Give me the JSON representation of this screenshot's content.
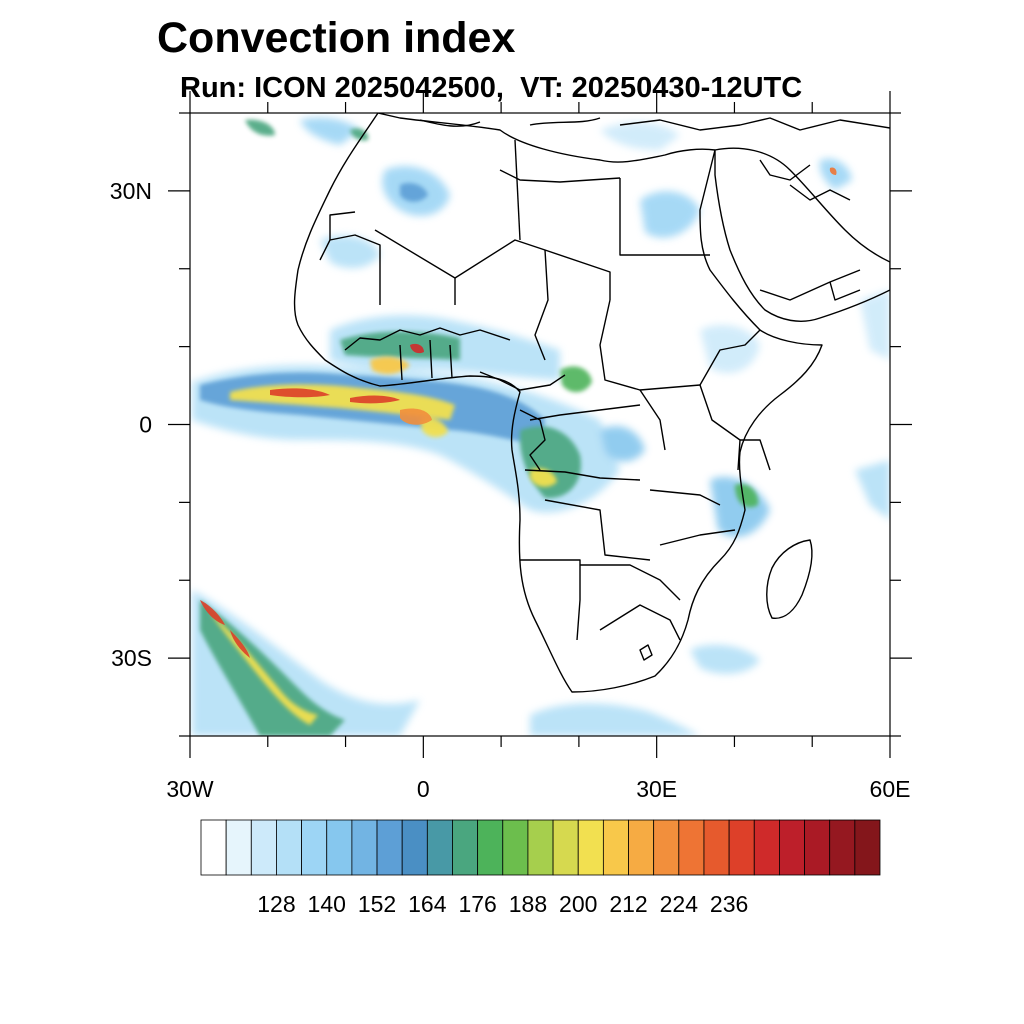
{
  "title": "Convection index",
  "subtitle": "Run: ICON 2025042500,  VT: 20250430-12UTC",
  "map": {
    "lon_range": [
      -30,
      60
    ],
    "lat_range": [
      -40,
      40
    ],
    "y_axis_labels": [
      {
        "lat": 30,
        "text": "30N"
      },
      {
        "lat": 0,
        "text": "0"
      },
      {
        "lat": -30,
        "text": "30S"
      }
    ],
    "x_axis_labels": [
      {
        "lon": -30,
        "text": "30W"
      },
      {
        "lon": 0,
        "text": "0"
      },
      {
        "lon": 30,
        "text": "30E"
      },
      {
        "lon": 60,
        "text": "60E"
      }
    ]
  },
  "colorbar": {
    "colors": [
      "#ffffff",
      "#e6f5fc",
      "#cdeafa",
      "#b4e0f7",
      "#9dd5f5",
      "#86c7ee",
      "#72b4e3",
      "#5d9fd6",
      "#4a8fc4",
      "#4899a6",
      "#4aa67f",
      "#4db35a",
      "#6cbe4d",
      "#a6cf4d",
      "#d6d94f",
      "#f2e050",
      "#f8c84a",
      "#f6ab43",
      "#f28f3c",
      "#ee7434",
      "#e65a2d",
      "#dd4029",
      "#cf2a2a",
      "#bd1f2a",
      "#aa1a25",
      "#951820",
      "#84161b"
    ],
    "labels": [
      "128",
      "140",
      "152",
      "164",
      "176",
      "188",
      "200",
      "212",
      "224",
      "236"
    ]
  },
  "regions": [
    {
      "name": "central-africa-convection",
      "lon": 15,
      "lat": 0,
      "intensity": 0.3
    },
    {
      "name": "gulf-of-guinea-band",
      "lon": -10,
      "lat": 3,
      "intensity": 0.9
    },
    {
      "name": "southwest-atlantic-band",
      "lon": -24,
      "lat": -32,
      "intensity": 0.7
    }
  ]
}
